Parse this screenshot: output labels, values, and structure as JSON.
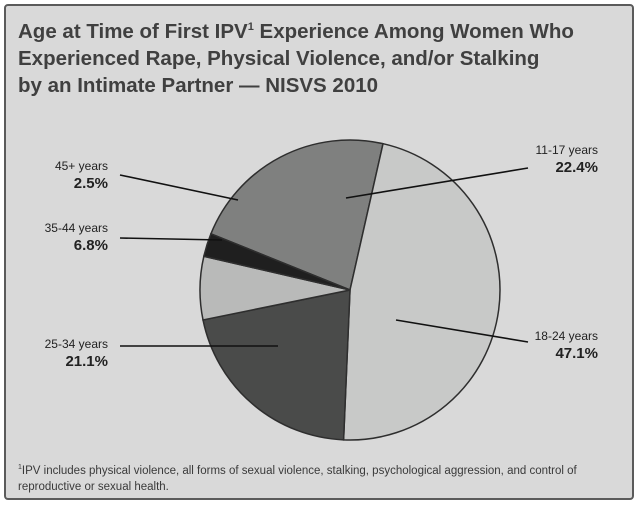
{
  "chart_data": {
    "type": "pie",
    "title": {
      "line1_pre": "Age at Time of First IPV",
      "line1_sup": "1",
      "line1_post": " Experience Among Women Who",
      "line2": "Experienced Rape, Physical Violence, and/or Stalking",
      "line3": "by an Intimate Partner — NISVS 2010"
    },
    "slices": [
      {
        "label": "11-17 years",
        "value": 22.4,
        "value_label": "22.4%",
        "color": "#7f807f"
      },
      {
        "label": "18-24 years",
        "value": 47.1,
        "value_label": "47.1%",
        "color": "#c8c9c8"
      },
      {
        "label": "25-34 years",
        "value": 21.1,
        "value_label": "21.1%",
        "color": "#4a4b4a"
      },
      {
        "label": "35-44 years",
        "value": 6.8,
        "value_label": "6.8%",
        "color": "#b9bab9"
      },
      {
        "label": "45+ years",
        "value": 2.5,
        "value_label": "2.5%",
        "color": "#1f1f1f"
      }
    ],
    "footnote": {
      "sup": "1",
      "text": "IPV includes physical violence, all forms of sexual violence, stalking, psychological aggression, and control of reproductive or sexual health."
    }
  }
}
